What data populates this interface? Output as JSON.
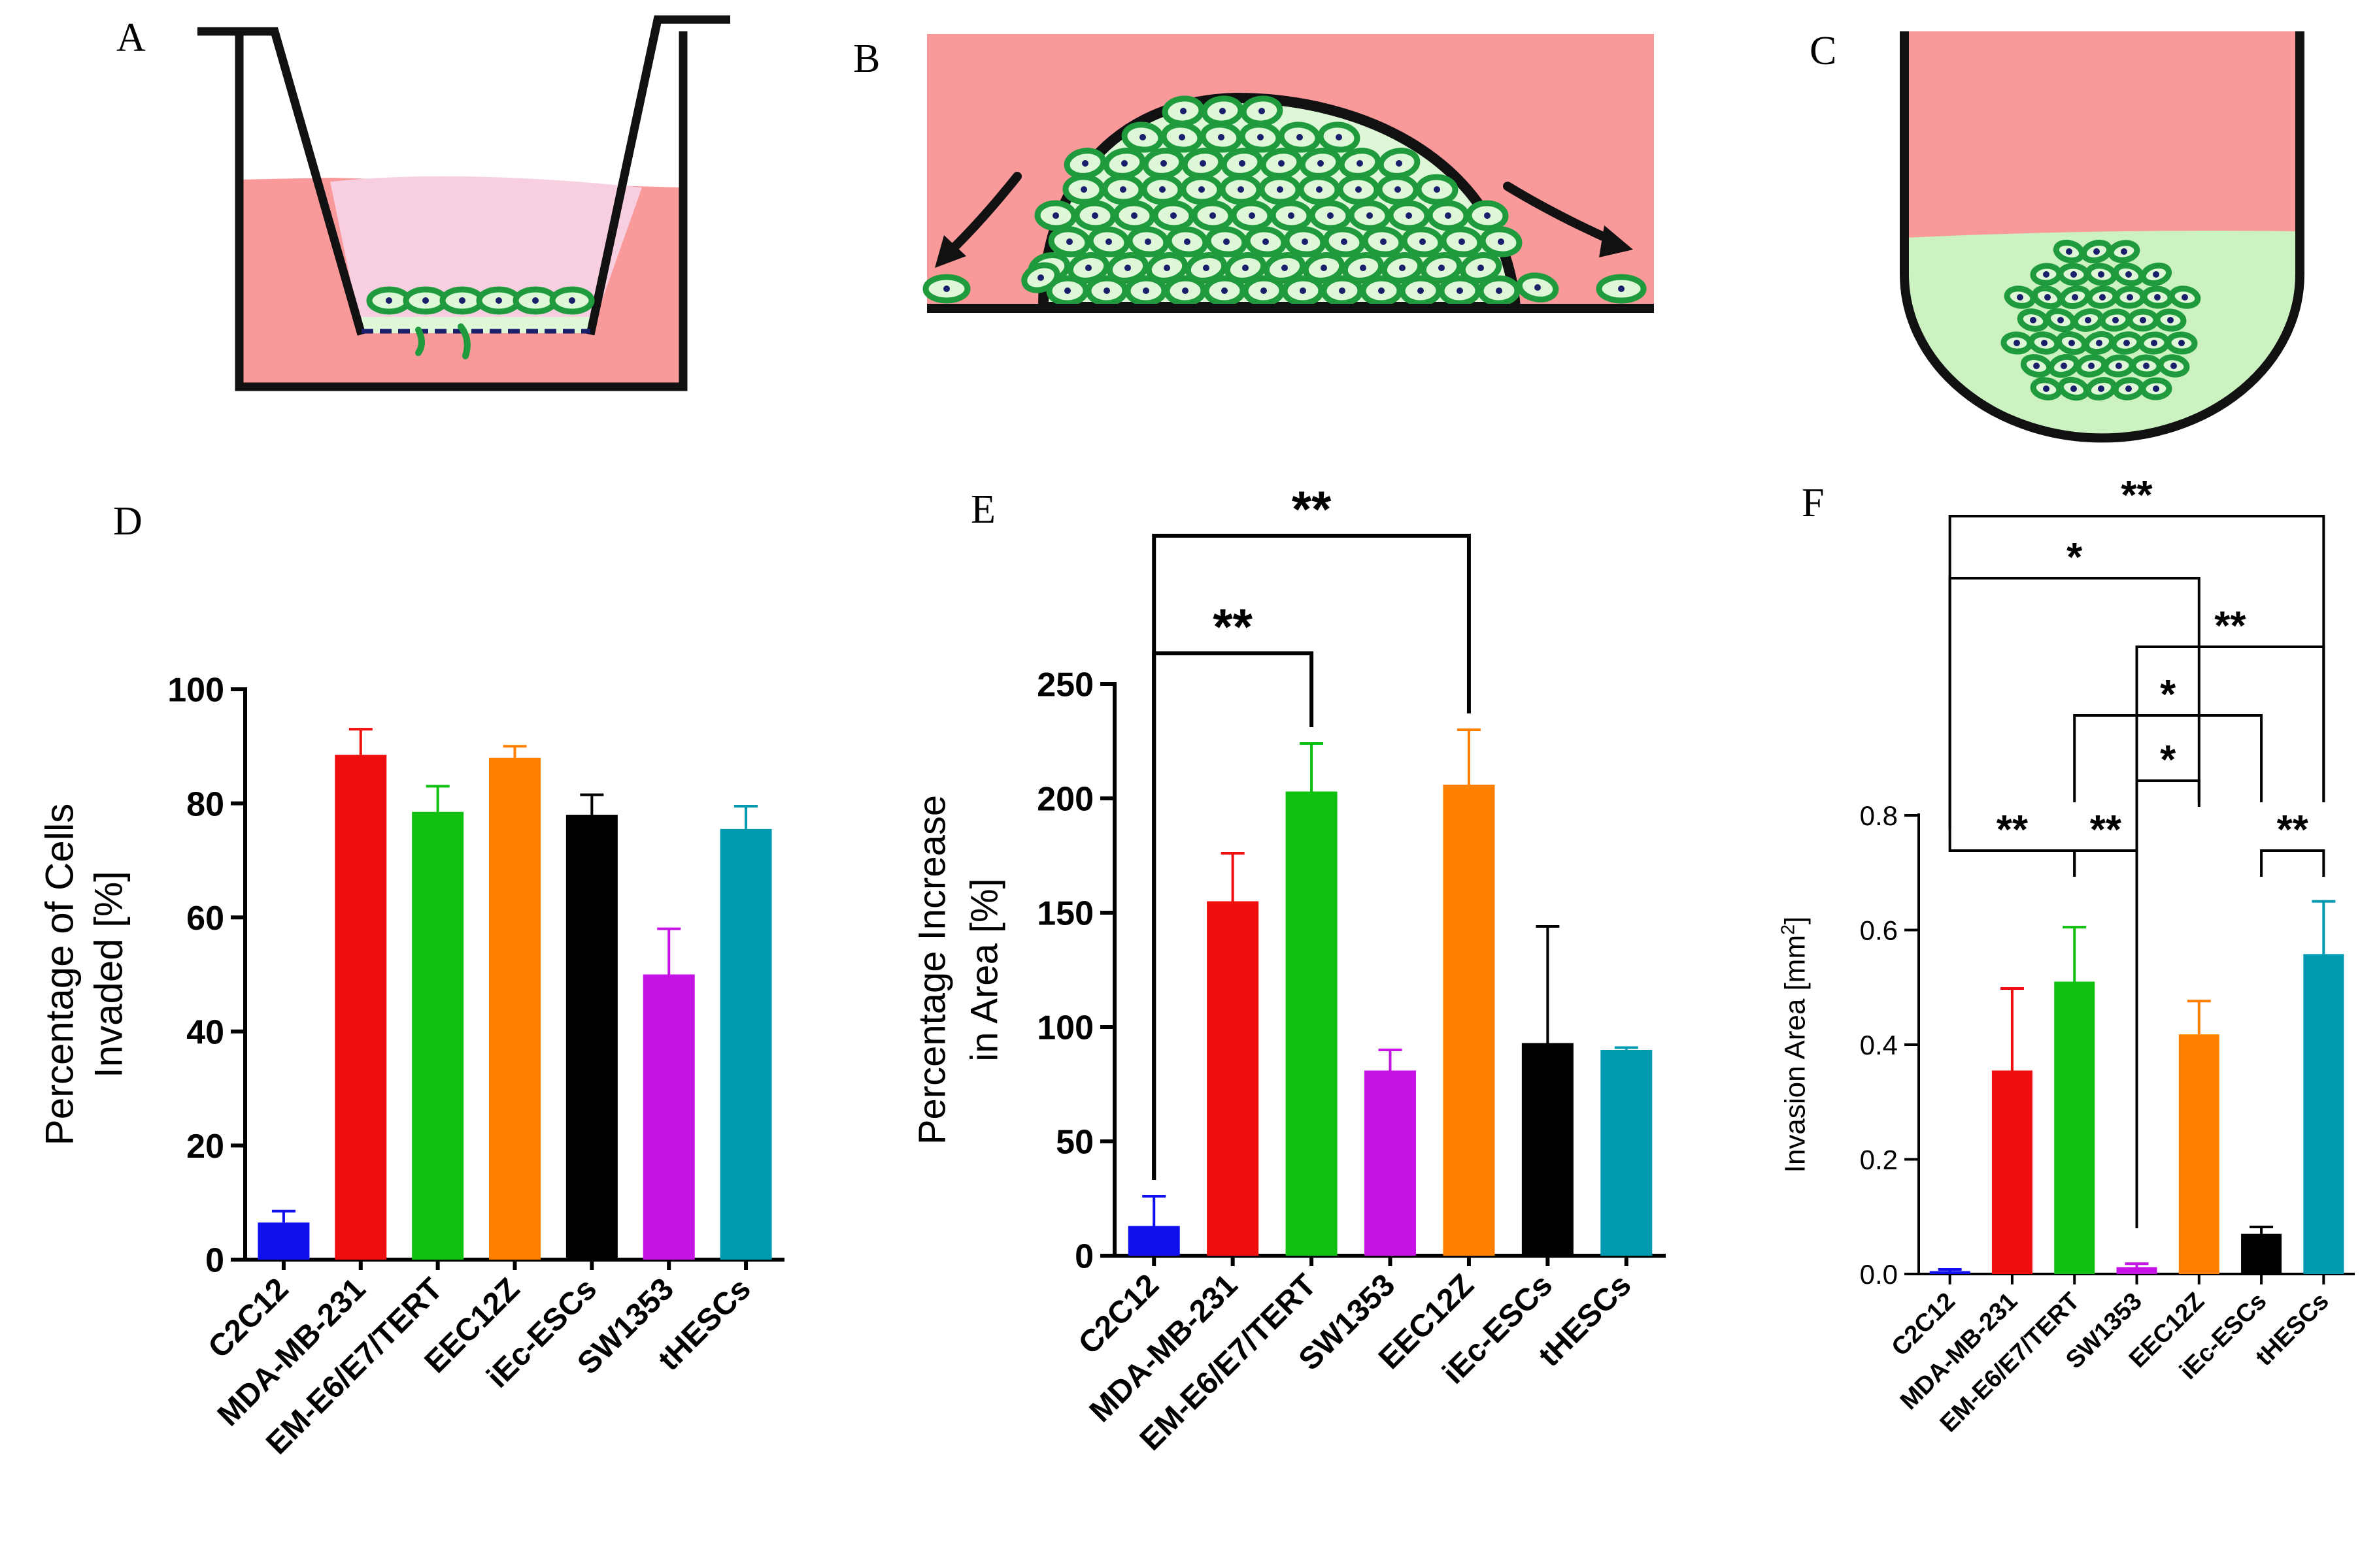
{
  "panel_labels": {
    "a": "A",
    "b": "B",
    "c": "C",
    "d": "D",
    "e": "E",
    "f": "F"
  },
  "colors": {
    "medium_red": "#f99999",
    "medium_pink": "#f8cfe1",
    "matrix_green": "#ccf2c2",
    "cell_fill": "#def7d6",
    "cell_outline": "#1f9a3d",
    "nucleus": "#1b1f6b",
    "vessel": "#111111"
  },
  "series_colors": [
    "#1010ee",
    "#ee0e0e",
    "#10c010",
    "#ff8000",
    "#000000",
    "#c414e4",
    "#0099b0"
  ],
  "chart_data": [
    {
      "id": "D",
      "type": "bar",
      "title": "",
      "ylabel_lines": [
        "Percentage of Cells",
        "Invaded [%]"
      ],
      "xlabel": "",
      "categories": [
        "C2C12",
        "MDA-MB-231",
        "EM-E6/E7/TERT",
        "EEC12Z",
        "iEc-ESCs",
        "SW1353",
        "tHESCs"
      ],
      "values": [
        6.5,
        88.5,
        78.5,
        88,
        78,
        50,
        75.5
      ],
      "errors": [
        2,
        4.5,
        4.5,
        2,
        3.5,
        8,
        4
      ],
      "colors": [
        "#1010ee",
        "#ee0e0e",
        "#10c010",
        "#ff8000",
        "#000000",
        "#c414e4",
        "#0099b0"
      ],
      "ylim": [
        0,
        100
      ],
      "ticks": [
        0,
        20,
        40,
        60,
        80,
        100
      ],
      "tick_labels": [
        "0",
        "20",
        "40",
        "60",
        "80",
        "100"
      ],
      "significance": []
    },
    {
      "id": "E",
      "type": "bar",
      "title": "",
      "ylabel_lines": [
        "Percentage Increase",
        "in  Area [%]"
      ],
      "xlabel": "",
      "categories": [
        "C2C12",
        "MDA-MB-231",
        "EM-E6/E7/TERT",
        "SW1353",
        "EEC12Z",
        "iEc-ESCs",
        "tHESCs"
      ],
      "values": [
        13,
        155,
        203,
        81,
        206,
        93,
        90
      ],
      "errors": [
        13,
        21,
        21,
        9,
        24,
        51,
        1
      ],
      "colors": [
        "#1010ee",
        "#ee0e0e",
        "#10c010",
        "#c414e4",
        "#ff8000",
        "#000000",
        "#0099b0"
      ],
      "ylim": [
        0,
        250
      ],
      "ticks": [
        0,
        50,
        100,
        150,
        200,
        250
      ],
      "tick_labels": [
        "0",
        "50",
        "100",
        "150",
        "200",
        "250"
      ],
      "significance": [
        {
          "from": 0,
          "to": 2,
          "label": "**"
        },
        {
          "from": 0,
          "to": 4,
          "label": "**"
        }
      ]
    },
    {
      "id": "F",
      "type": "bar",
      "title": "",
      "ylabel_prefix": "Invasion Area [mm",
      "ylabel_sup": "2",
      "ylabel_suffix": "]",
      "xlabel": "",
      "categories": [
        "C2C12",
        "MDA-MB-231",
        "EM-E6/E7/TERT",
        "SW1353",
        "EEC12Z",
        "iEc-ESCs",
        "tHESCs"
      ],
      "values": [
        0.005,
        0.355,
        0.51,
        0.012,
        0.418,
        0.07,
        0.558
      ],
      "errors": [
        0.003,
        0.143,
        0.095,
        0.006,
        0.058,
        0.012,
        0.092
      ],
      "colors": [
        "#1010ee",
        "#ee0e0e",
        "#10c010",
        "#c414e4",
        "#ff8000",
        "#000000",
        "#0099b0"
      ],
      "ylim": [
        0,
        0.8
      ],
      "ticks": [
        0,
        0.2,
        0.4,
        0.6,
        0.8
      ],
      "tick_labels": [
        "0.0",
        "0.2",
        "0.4",
        "0.6",
        "0.8"
      ],
      "significance": [
        {
          "from": 0,
          "to": 6,
          "label": "**"
        },
        {
          "from": 0,
          "to": 4,
          "label": "*"
        },
        {
          "from": 3,
          "to": 6,
          "label": "**"
        },
        {
          "from": 2,
          "to": 5,
          "label": "*"
        },
        {
          "from": 3,
          "to": 4,
          "label": "*"
        },
        {
          "from": 0,
          "to": 2,
          "label": "**"
        },
        {
          "from": 2,
          "to": 3,
          "label": "**"
        },
        {
          "from": 5,
          "to": 6,
          "label": "**"
        }
      ]
    }
  ]
}
